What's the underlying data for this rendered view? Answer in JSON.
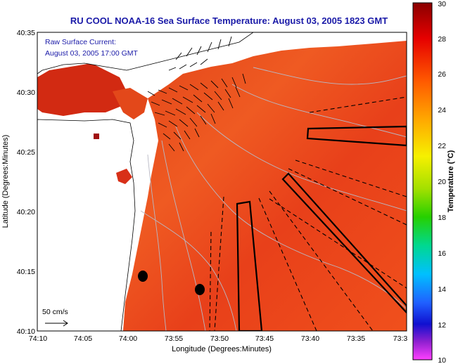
{
  "title": "RU COOL  NOAA-16  Sea Surface Temperature:  August 03, 2005 1823 GMT",
  "annotation": {
    "line1": "Raw Surface Current:",
    "line2": "August 03, 2005 17:00 GMT"
  },
  "scale_label": "50 cm/s",
  "axes": {
    "xlabel": "Longitude (Degrees:Minutes)",
    "ylabel": "Latitude (Degrees:Minutes)",
    "x_ticks": [
      "74:10",
      "74:05",
      "74:00",
      "73:55",
      "73:50",
      "73:45",
      "73:40",
      "73:35",
      "73:3"
    ],
    "y_ticks": [
      "40:35",
      "40:30",
      "40:25",
      "40:20",
      "40:15",
      "40:10"
    ]
  },
  "colorbar": {
    "label": "Temperature (°C)",
    "ticks": [
      "30",
      "28",
      "26",
      "24",
      "22",
      "20",
      "18",
      "16",
      "14",
      "12",
      "10"
    ],
    "range": [
      10,
      30
    ]
  },
  "colors": {
    "title": "#1a1aa8",
    "sea_warm": "#e83a18",
    "sea_mid": "#f0561e",
    "land": "#ffffff"
  },
  "markers": [
    "station-dot-1",
    "station-dot-2"
  ]
}
